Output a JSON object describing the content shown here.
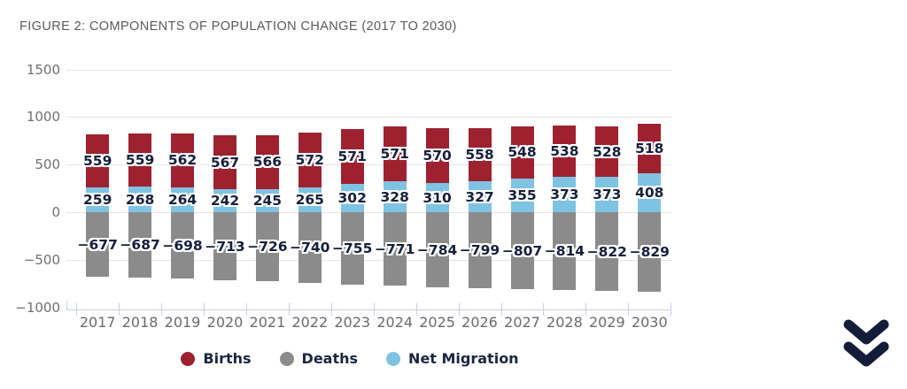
{
  "figure": {
    "title": "FIGURE 2: COMPONENTS OF POPULATION CHANGE (2017 TO 2030)"
  },
  "chart_data": {
    "type": "bar",
    "stacked": true,
    "title": "Components of population change (2017 to 2030)",
    "categories": [
      "2017",
      "2018",
      "2019",
      "2020",
      "2021",
      "2022",
      "2023",
      "2024",
      "2025",
      "2026",
      "2027",
      "2028",
      "2029",
      "2030"
    ],
    "series": [
      {
        "name": "Births",
        "color": "#9e2130",
        "values": [
          559,
          559,
          562,
          567,
          566,
          572,
          571,
          571,
          570,
          558,
          548,
          538,
          528,
          518
        ]
      },
      {
        "name": "Deaths",
        "color": "#8b8b8b",
        "values": [
          -677,
          -687,
          -698,
          -713,
          -726,
          -740,
          -755,
          -771,
          -784,
          -799,
          -807,
          -814,
          -822,
          -829
        ]
      },
      {
        "name": "Net Migration",
        "color": "#7fc3e3",
        "values": [
          259,
          268,
          264,
          242,
          245,
          265,
          302,
          328,
          310,
          327,
          355,
          373,
          373,
          408
        ]
      }
    ],
    "stack_order": [
      "Net Migration",
      "Births",
      "Deaths"
    ],
    "ylim": [
      -1000,
      1500
    ],
    "yticks": [
      1500,
      1000,
      500,
      0,
      -500,
      -1000
    ],
    "grid": "horizontal",
    "data_labels": true,
    "legend_position": "bottom"
  },
  "icons": {
    "scroll_down": "double-chevron-down",
    "scroll_down_color": "#131d3a"
  },
  "colors": {
    "background": "#ffffff",
    "gridline": "#e4e4e6",
    "axis": "#c9cfe7",
    "tick_text": "#6f7072",
    "label_text": "#16203c",
    "title_text": "#595a5c"
  }
}
